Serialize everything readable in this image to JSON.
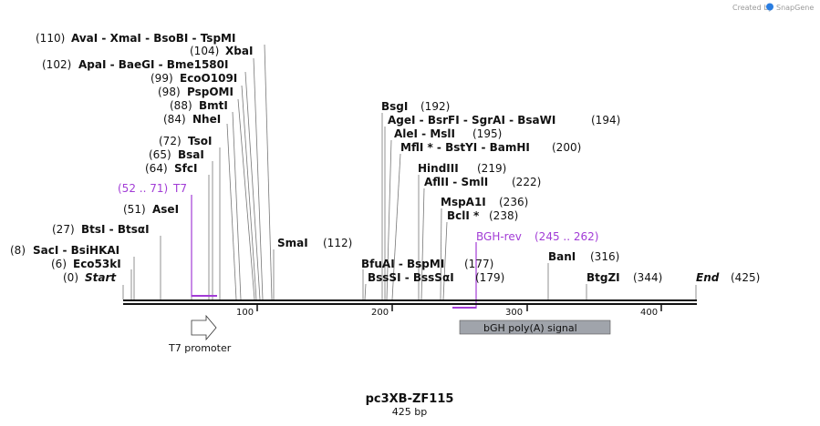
{
  "credit": {
    "text": "Created by",
    "brand": "SnapGene"
  },
  "title": "pc3XB-ZF115",
  "subtitle": "425 bp",
  "ruler": {
    "ticks": [
      "100",
      "200",
      "300",
      "400"
    ]
  },
  "features": [
    {
      "label": "T7 promoter",
      "color": "#ffffff"
    },
    {
      "label": "bGH poly(A) signal",
      "color": "#a0a4ab"
    }
  ],
  "primers": [
    {
      "name": "T7",
      "range": "(52 .. 71)",
      "color": "#a23cd6"
    },
    {
      "name": "BGH-rev",
      "range": "(245 .. 262)",
      "color": "#a23cd6"
    }
  ],
  "sites": [
    {
      "pos": "(0)",
      "name": "Start"
    },
    {
      "pos": "(6)",
      "name": "Eco53kI"
    },
    {
      "pos": "(8)",
      "name": "SacI  - BsiHKAI"
    },
    {
      "pos": "(27)",
      "name": "BtsI  - BtsαI"
    },
    {
      "pos": "(51)",
      "name": "AseI"
    },
    {
      "pos": "(64)",
      "name": "SfcI"
    },
    {
      "pos": "(65)",
      "name": "BsaI"
    },
    {
      "pos": "(72)",
      "name": "TsoI"
    },
    {
      "pos": "(84)",
      "name": "NheI"
    },
    {
      "pos": "(88)",
      "name": "BmtI"
    },
    {
      "pos": "(98)",
      "name": "PspOMI"
    },
    {
      "pos": "(99)",
      "name": "EcoO109I"
    },
    {
      "pos": "(102)",
      "name": "ApaI  - BaeGI  - Bme1580I"
    },
    {
      "pos": "(104)",
      "name": "XbaI"
    },
    {
      "pos": "(110)",
      "name": "AvaI  - XmaI  - BsoBI  - TspMI"
    },
    {
      "pos": "(112)",
      "name": "SmaI"
    },
    {
      "pos": "(177)",
      "name": "BfuAI  - BspMI"
    },
    {
      "pos": "(179)",
      "name": "BssSI  - BssSαI"
    },
    {
      "pos": "(192)",
      "name": "BsgI"
    },
    {
      "pos": "(194)",
      "name": "AgeI  - BsrFI  - SgrAI  - BsaWI"
    },
    {
      "pos": "(195)",
      "name": "AleI  - MslI"
    },
    {
      "pos": "(200)",
      "name": "MflI *  - BstYI  - BamHI"
    },
    {
      "pos": "(219)",
      "name": "HindIII"
    },
    {
      "pos": "(222)",
      "name": "AflII  - SmlI"
    },
    {
      "pos": "(236)",
      "name": "MspA1I"
    },
    {
      "pos": "(238)",
      "name": "BclI *"
    },
    {
      "pos": "(316)",
      "name": "BanI"
    },
    {
      "pos": "(344)",
      "name": "BtgZI"
    },
    {
      "pos": "(425)",
      "name": "End"
    }
  ]
}
